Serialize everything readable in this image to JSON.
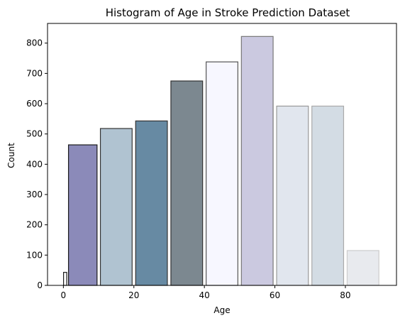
{
  "chart_data": {
    "type": "bar",
    "title": "Histogram of Age in Stroke Prediction Dataset",
    "xlabel": "Age",
    "ylabel": "Count",
    "xlim": [
      -4.5,
      94.5
    ],
    "ylim": [
      0,
      865
    ],
    "xticks": [
      0,
      20,
      40,
      60,
      80
    ],
    "yticks": [
      0,
      100,
      200,
      300,
      400,
      500,
      600,
      700,
      800
    ],
    "grid": false,
    "bars": [
      {
        "x_start": 0,
        "x_end": 1,
        "value": 43,
        "color": "#ffffff",
        "edgecolor": "#1a1a1a"
      },
      {
        "x_start": 1,
        "x_end": 10,
        "value": 464,
        "color": "#8b8ab9",
        "edgecolor": "#1a1a1a"
      },
      {
        "x_start": 10,
        "x_end": 20,
        "value": 518,
        "color": "#b0c3d1",
        "edgecolor": "#333333"
      },
      {
        "x_start": 20,
        "x_end": 30,
        "value": 543,
        "color": "#678aa3",
        "edgecolor": "#333333"
      },
      {
        "x_start": 30,
        "x_end": 40,
        "value": 675,
        "color": "#7c8890",
        "edgecolor": "#333333"
      },
      {
        "x_start": 40,
        "x_end": 50,
        "value": 738,
        "color": "#f7f7ff",
        "edgecolor": "#555555"
      },
      {
        "x_start": 50,
        "x_end": 60,
        "value": 822,
        "color": "#cbc9e0",
        "edgecolor": "#777777"
      },
      {
        "x_start": 60,
        "x_end": 70,
        "value": 592,
        "color": "#e1e6ee",
        "edgecolor": "#999999"
      },
      {
        "x_start": 70,
        "x_end": 80,
        "value": 592,
        "color": "#d3dce4",
        "edgecolor": "#aaaaaa"
      },
      {
        "x_start": 80,
        "x_end": 90,
        "value": 115,
        "color": "#e8eaee",
        "edgecolor": "#cccccc"
      }
    ]
  }
}
